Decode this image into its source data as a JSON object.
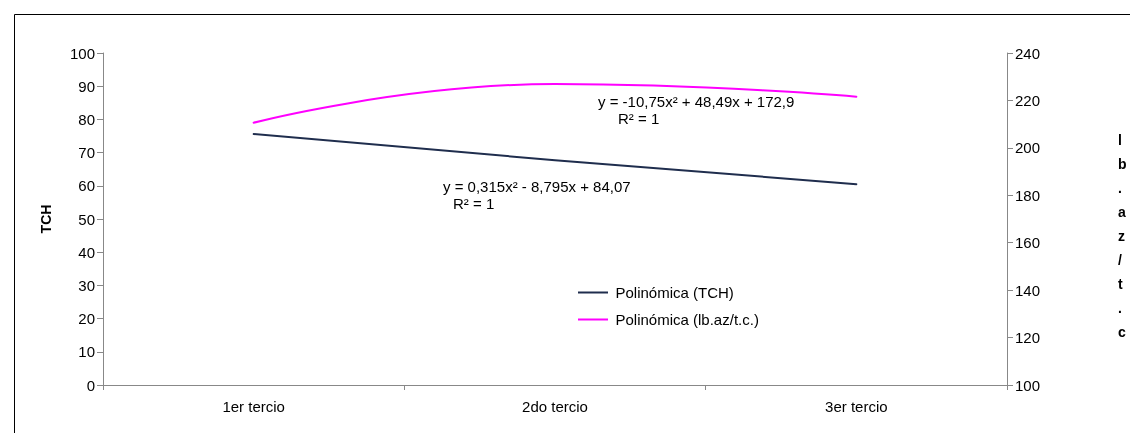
{
  "chart_data": {
    "type": "line",
    "categories": [
      "1er tercio",
      "2do tercio",
      "3er tercio"
    ],
    "series": [
      {
        "name": "Polinómica (TCH)",
        "color": "#1f2d4d",
        "values": [
          75.6,
          67.7,
          60.5
        ]
      },
      {
        "name": "Polinómica (lb.az/t.c.)",
        "color": "#ff00ff",
        "values": [
          210.6,
          226.9,
          221.6
        ],
        "axis": "y2"
      }
    ],
    "ylabel": "TCH",
    "y2label": "lb.az/t.c",
    "ylim": [
      0,
      100
    ],
    "yticks": [
      0,
      10,
      20,
      30,
      40,
      50,
      60,
      70,
      80,
      90,
      100
    ],
    "y2lim": [
      100,
      240
    ],
    "y2ticks": [
      100,
      120,
      140,
      160,
      180,
      200,
      220,
      240
    ],
    "annotations": [
      "y = -10,75x² + 48,49x + 172,9",
      "R² = 1",
      "y = 0,315x² - 8,795x + 84,07",
      "R² = 1"
    ],
    "legend": "right",
    "grid": false,
    "marker": "none",
    "line_style": "solid"
  }
}
